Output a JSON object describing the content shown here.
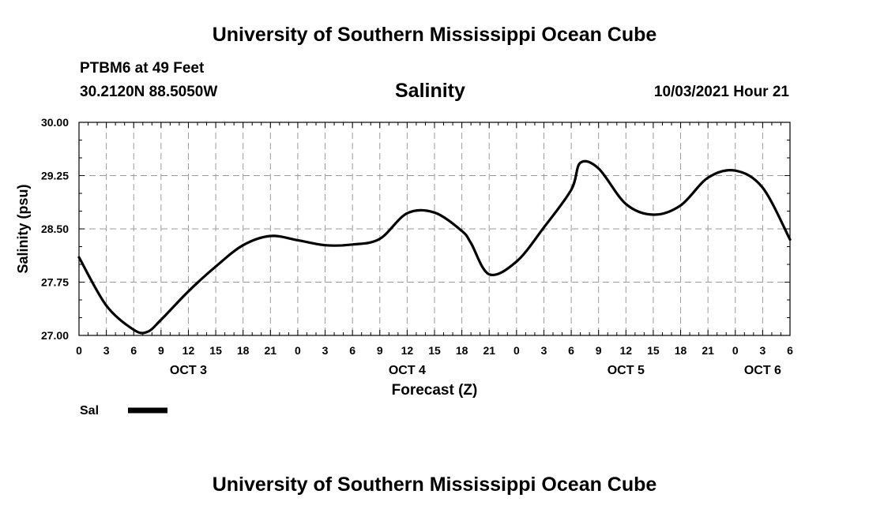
{
  "header": {
    "title": "University of Southern Mississippi Ocean Cube",
    "station": "PTBM6 at 49 Feet",
    "coordinates": "30.2120N  88.5050W",
    "datetime": "10/03/2021 Hour 21"
  },
  "footer": {
    "title": "University of Southern Mississippi Ocean Cube"
  },
  "chart_data": {
    "type": "line",
    "title": "Salinity",
    "xlabel": "Forecast (Z)",
    "ylabel": "Salinity (psu)",
    "ylim": [
      27.0,
      30.0
    ],
    "xlim": [
      0,
      78
    ],
    "grid": true,
    "y_ticks": [
      "27.00",
      "27.75",
      "28.50",
      "29.25",
      "30.00"
    ],
    "y_tick_values": [
      27.0,
      27.75,
      28.5,
      29.25,
      30.0
    ],
    "x_tick_labels": [
      "0",
      "3",
      "6",
      "9",
      "12",
      "15",
      "18",
      "21",
      "0",
      "3",
      "6",
      "9",
      "12",
      "15",
      "18",
      "21",
      "0",
      "3",
      "6",
      "9",
      "12",
      "15",
      "18",
      "21",
      "0",
      "3",
      "6"
    ],
    "day_labels": [
      {
        "label": "OCT 3",
        "hour": 12
      },
      {
        "label": "OCT 4",
        "hour": 36
      },
      {
        "label": "OCT 5",
        "hour": 60
      },
      {
        "label": "OCT 6",
        "hour": 75
      }
    ],
    "series": [
      {
        "name": "Sal",
        "color": "#000000",
        "x": [
          0,
          3,
          6,
          7.5,
          9,
          12,
          15,
          18,
          21,
          24,
          27,
          30,
          33,
          36,
          39,
          42,
          43,
          45,
          48,
          51,
          54,
          55,
          57,
          60,
          63,
          66,
          69,
          72,
          75,
          78
        ],
        "y": [
          28.1,
          27.42,
          27.08,
          27.05,
          27.22,
          27.62,
          27.97,
          28.27,
          28.4,
          28.34,
          28.27,
          28.28,
          28.36,
          28.72,
          28.73,
          28.47,
          28.3,
          27.86,
          28.04,
          28.52,
          29.05,
          29.43,
          29.35,
          28.85,
          28.7,
          28.83,
          29.22,
          29.32,
          29.08,
          28.35
        ]
      }
    ],
    "legend": {
      "label": "Sal",
      "placement": "bottom-left"
    }
  }
}
